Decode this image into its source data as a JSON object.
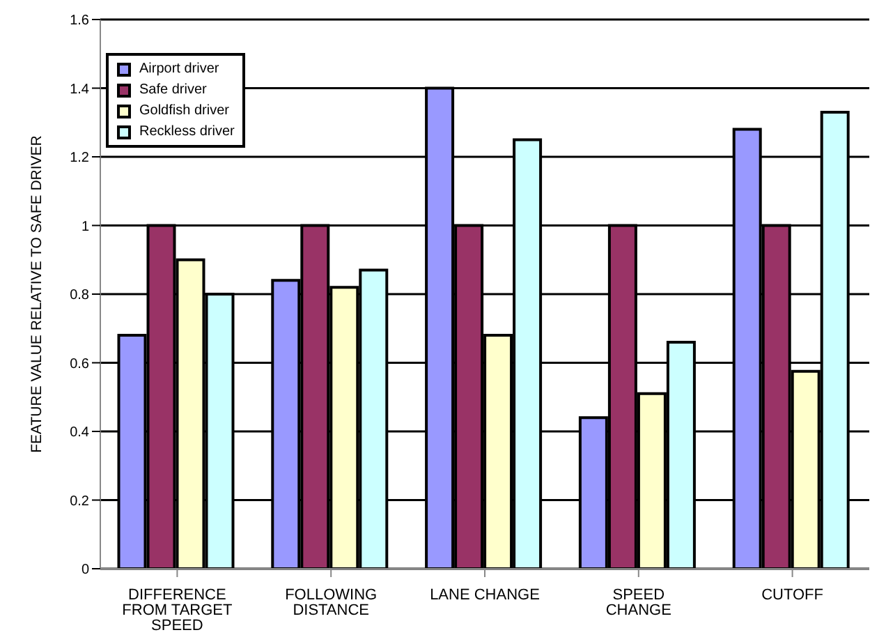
{
  "chart_data": {
    "type": "bar",
    "ylabel": "FEATURE VALUE RELATIVE TO SAFE DRIVER",
    "categories": [
      "DIFFERENCE FROM TARGET SPEED",
      "FOLLOWING DISTANCE",
      "LANE CHANGE",
      "SPEED CHANGE",
      "CUTOFF"
    ],
    "series": [
      {
        "name": "Airport  driver",
        "color": "#9999ff",
        "values": [
          0.68,
          0.84,
          1.4,
          0.44,
          1.28
        ]
      },
      {
        "name": "Safe driver",
        "color": "#993366",
        "values": [
          1.0,
          1.0,
          1.0,
          1.0,
          1.0
        ]
      },
      {
        "name": "Goldfish driver",
        "color": "#ffffcc",
        "values": [
          0.9,
          0.82,
          0.68,
          0.51,
          0.575
        ]
      },
      {
        "name": "Reckless driver",
        "color": "#ccffff",
        "values": [
          0.8,
          0.87,
          1.25,
          0.66,
          1.33
        ]
      }
    ],
    "ylim": [
      0,
      1.6
    ],
    "yticks": [
      0,
      0.2,
      0.4,
      0.6,
      0.8,
      1,
      1.2,
      1.4,
      1.6
    ],
    "grid": "y",
    "legend": "top left"
  }
}
